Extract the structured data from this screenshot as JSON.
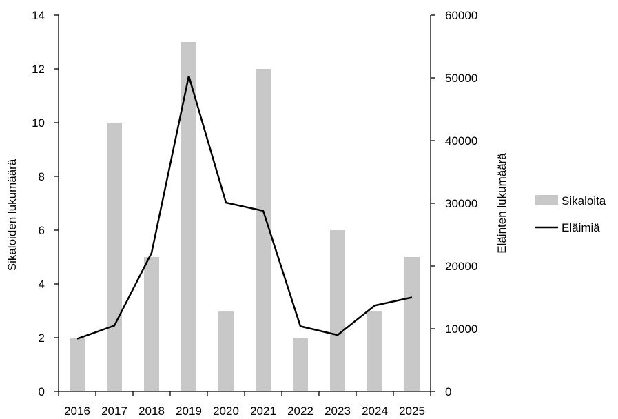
{
  "chart_data": {
    "type": "bar",
    "categories": [
      "2016",
      "2017",
      "2018",
      "2019",
      "2020",
      "2021",
      "2022",
      "2023",
      "2024",
      "2025"
    ],
    "series": [
      {
        "name": "Sikaloita",
        "type": "bar",
        "axis": "left",
        "color": "#c8c8c8",
        "values": [
          2,
          10,
          5,
          13,
          3,
          12,
          2,
          6,
          3,
          5
        ]
      },
      {
        "name": "Eläimiä",
        "type": "line",
        "axis": "right",
        "color": "#000000",
        "values": [
          8400,
          10500,
          22100,
          50300,
          30100,
          28800,
          10400,
          9000,
          13700,
          15000
        ]
      }
    ],
    "ylabel": "Sikaloiden lukumäärä",
    "y2label": "Eläinten lukumäärä",
    "ylim": [
      0,
      14
    ],
    "y2lim": [
      0,
      60000
    ],
    "yticks": [
      "0",
      "2",
      "4",
      "6",
      "8",
      "10",
      "12",
      "14"
    ],
    "y2ticks": [
      "0",
      "10000",
      "20000",
      "30000",
      "40000",
      "50000",
      "60000"
    ],
    "grid": false,
    "legend_position": "right"
  }
}
